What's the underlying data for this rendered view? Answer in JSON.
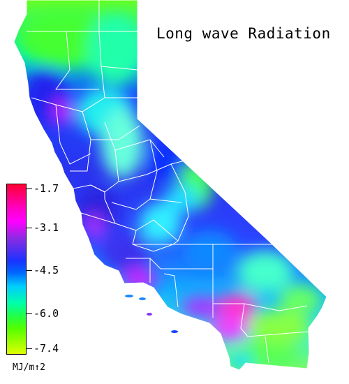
{
  "title": "Long wave Radiation",
  "colors": {
    "background": "#ffffff",
    "boundary": "#ffffff",
    "scale": [
      "#ff0033",
      "#ff00ff",
      "#8a2be2",
      "#1a33ff",
      "#00ccff",
      "#00ff88",
      "#55ff00",
      "#ddff00"
    ]
  },
  "legend": {
    "units": "MJ/m↑2",
    "ticks": [
      "-1.7",
      "-3.1",
      "-4.5",
      "-6.0",
      "-7.4"
    ]
  }
}
